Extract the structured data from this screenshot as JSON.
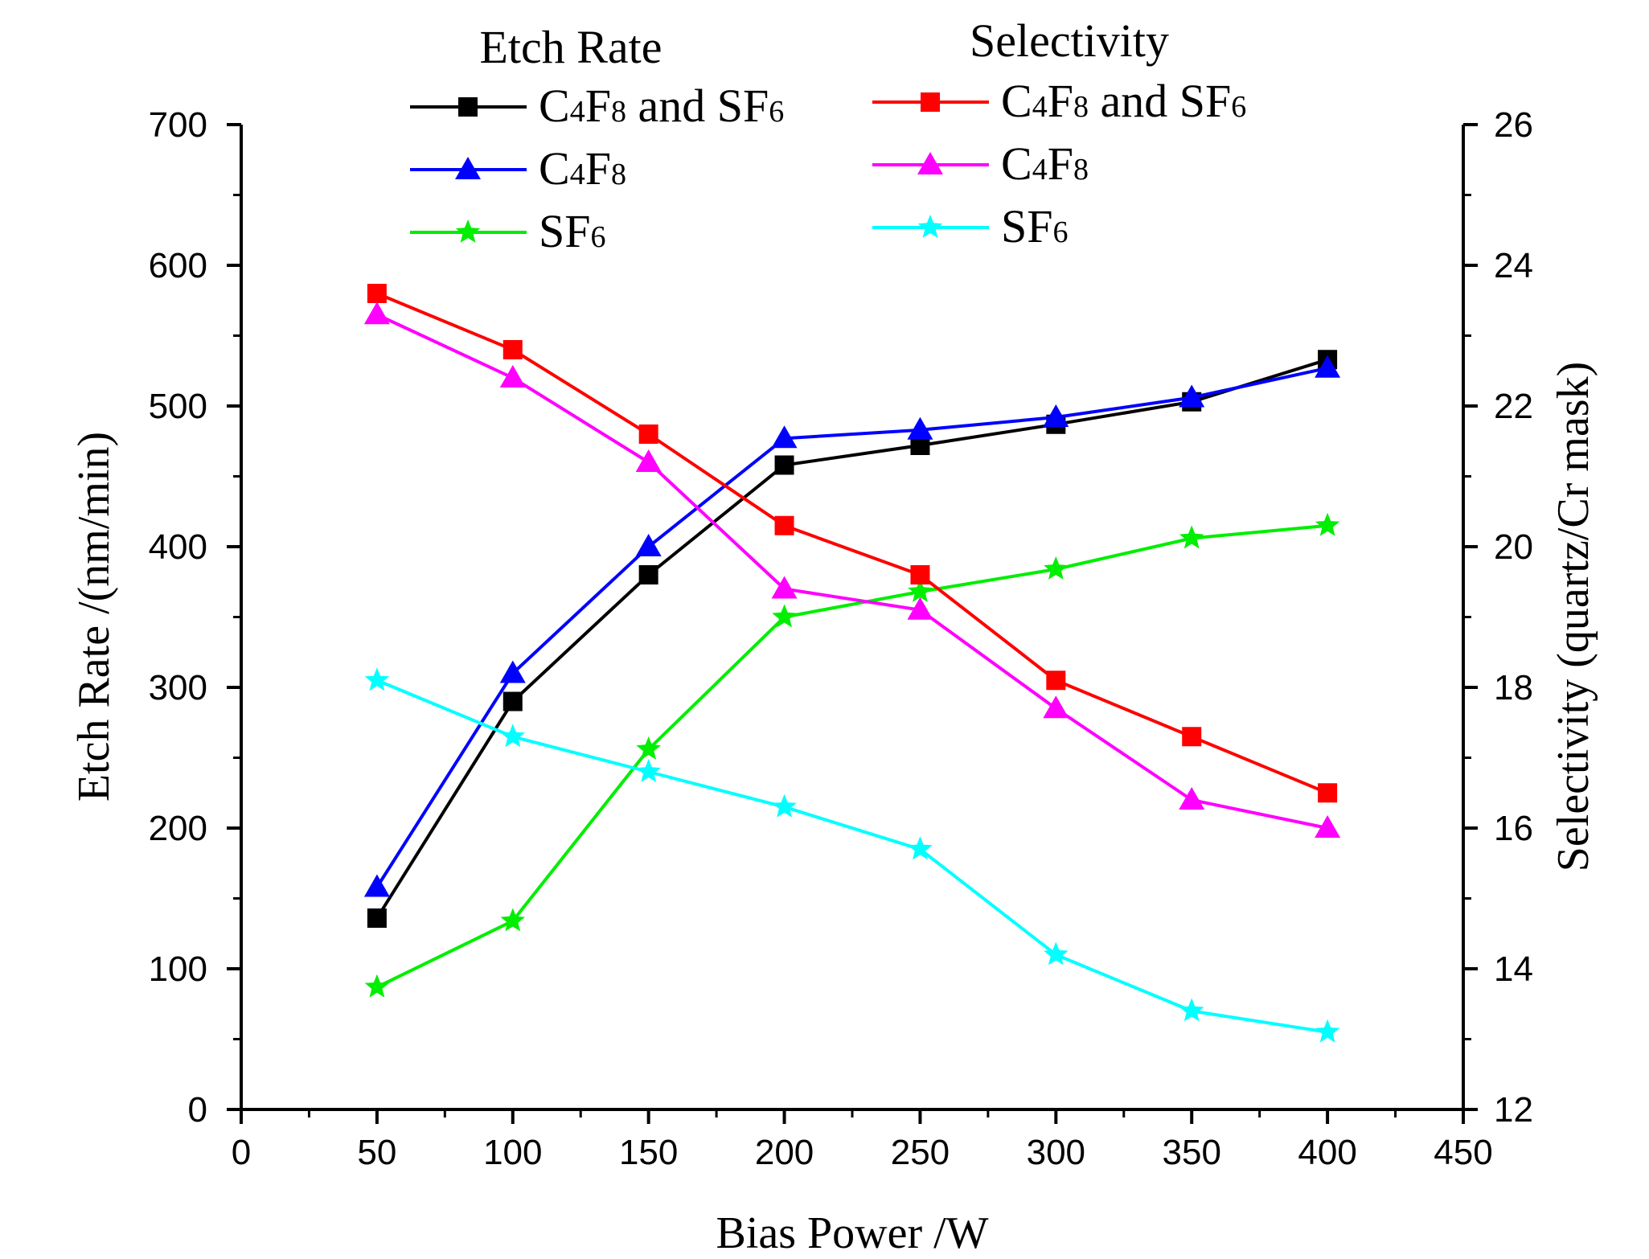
{
  "chart_data": {
    "type": "line",
    "x_axis": {
      "label": "Bias Power /W",
      "range": [
        0,
        450
      ],
      "ticks": [
        0,
        50,
        100,
        150,
        200,
        250,
        300,
        350,
        400,
        450
      ]
    },
    "y_axis_left": {
      "label": "Etch Rate /(nm/min)",
      "range": [
        0,
        700
      ],
      "ticks": [
        0,
        100,
        200,
        300,
        400,
        500,
        600,
        700
      ]
    },
    "y_axis_right": {
      "label": "Selectivity (quartz/Cr mask)",
      "range": [
        12,
        26
      ],
      "ticks": [
        12,
        14,
        16,
        18,
        20,
        22,
        24,
        26
      ]
    },
    "legend_groups": [
      {
        "title": "Etch Rate",
        "axis": "left"
      },
      {
        "title": "Selectivity",
        "axis": "right"
      }
    ],
    "x": [
      50,
      100,
      150,
      200,
      250,
      300,
      350,
      400
    ],
    "series": [
      {
        "name": "C4F8 and SF6",
        "label_parts": [
          "C",
          "4",
          "F",
          "8",
          " and SF",
          "6"
        ],
        "group": 0,
        "axis": "left",
        "color": "#000000",
        "marker": "square",
        "values": [
          136,
          290,
          380,
          458,
          472,
          487,
          503,
          533
        ]
      },
      {
        "name": "C4F8",
        "label_parts": [
          "C",
          "4",
          "F",
          "8"
        ],
        "group": 0,
        "axis": "left",
        "color": "#0000ff",
        "marker": "triangle",
        "values": [
          158,
          310,
          400,
          477,
          483,
          492,
          506,
          527
        ]
      },
      {
        "name": "SF6",
        "label_parts": [
          "SF",
          "6"
        ],
        "group": 0,
        "axis": "left",
        "color": "#00ee00",
        "marker": "star",
        "values": [
          87,
          134,
          256,
          350,
          368,
          384,
          406,
          415
        ]
      },
      {
        "name": "C4F8 and SF6",
        "label_parts": [
          "C",
          "4",
          "F",
          "8",
          " and SF",
          "6"
        ],
        "group": 1,
        "axis": "right",
        "color": "#ff0000",
        "marker": "square",
        "values": [
          23.6,
          22.8,
          21.6,
          20.3,
          19.6,
          18.1,
          17.3,
          16.5
        ]
      },
      {
        "name": "C4F8",
        "label_parts": [
          "C",
          "4",
          "F",
          "8"
        ],
        "group": 1,
        "axis": "right",
        "color": "#ff00ff",
        "marker": "triangle",
        "values": [
          23.3,
          22.4,
          21.2,
          19.4,
          19.1,
          17.7,
          16.4,
          16.0
        ]
      },
      {
        "name": "SF6",
        "label_parts": [
          "SF",
          "6"
        ],
        "group": 1,
        "axis": "right",
        "color": "#00ffff",
        "marker": "star",
        "values": [
          18.1,
          17.3,
          16.8,
          16.3,
          15.7,
          14.2,
          13.4,
          13.1
        ]
      }
    ]
  }
}
